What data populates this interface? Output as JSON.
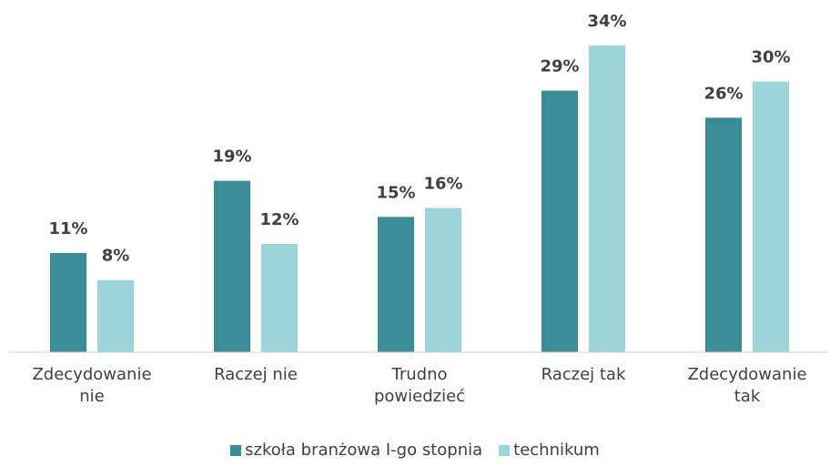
{
  "chart_data": {
    "type": "bar",
    "categories": [
      "Zdecydowanie nie",
      "Raczej nie",
      "Trudno powiedzieć",
      "Raczej tak",
      "Zdecydowanie tak"
    ],
    "series": [
      {
        "name": "szkoła branżowa I-go stopnia",
        "color": "#3a8d96",
        "values": [
          11,
          19,
          15,
          29,
          26
        ],
        "value_labels": [
          "11%",
          "19%",
          "15%",
          "29%",
          "26%"
        ]
      },
      {
        "name": "technikum",
        "color": "#9dd4d9",
        "values": [
          8,
          12,
          16,
          34,
          30
        ],
        "value_labels": [
          "8%",
          "12%",
          "16%",
          "34%",
          "30%"
        ]
      }
    ],
    "legend": "bottom"
  }
}
